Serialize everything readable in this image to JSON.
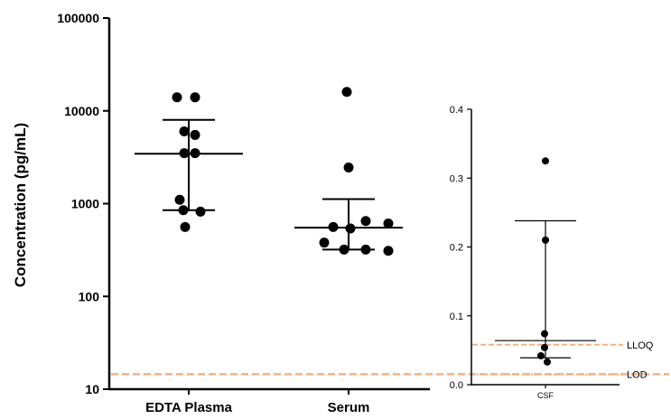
{
  "chart_data": [
    {
      "type": "scatter",
      "ylabel": "Concentration (pg/mL)",
      "yscale": "log",
      "ylim": [
        10,
        100000
      ],
      "yticks": [
        "10",
        "100",
        "1000",
        "10000",
        "100000"
      ],
      "categories": [
        "EDTA Plasma",
        "Serum"
      ],
      "series": [
        {
          "category": "EDTA Plasma",
          "points": [
            14000,
            14000,
            6000,
            5500,
            3500,
            3500,
            1100,
            850,
            820,
            560
          ],
          "median": 3450,
          "whisker_low": 850,
          "whisker_high": 8000
        },
        {
          "category": "Serum",
          "points": [
            16000,
            2450,
            650,
            610,
            560,
            540,
            380,
            320,
            320,
            310
          ],
          "median": 550,
          "whisker_low": 320,
          "whisker_high": 1120
        }
      ],
      "reference_lines": [
        {
          "y": 14.5,
          "color": "#f4b183",
          "style": "dashed"
        }
      ]
    },
    {
      "type": "scatter",
      "ylim": [
        0,
        0.4
      ],
      "yticks": [
        "0.0",
        "0.1",
        "0.2",
        "0.3",
        "0.4"
      ],
      "categories": [
        "CSF"
      ],
      "series": [
        {
          "category": "CSF",
          "points": [
            0.325,
            0.21,
            0.074,
            0.054,
            0.042,
            0.033
          ],
          "median": 0.064,
          "whisker_low": 0.039,
          "whisker_high": 0.238
        }
      ],
      "reference_lines": [
        {
          "label": "LLOQ",
          "y": 0.058,
          "color": "#f4b183",
          "style": "dashed"
        },
        {
          "label": "LOD",
          "y": 0.015,
          "color": "#f4b183",
          "style": "dotted"
        }
      ]
    }
  ]
}
